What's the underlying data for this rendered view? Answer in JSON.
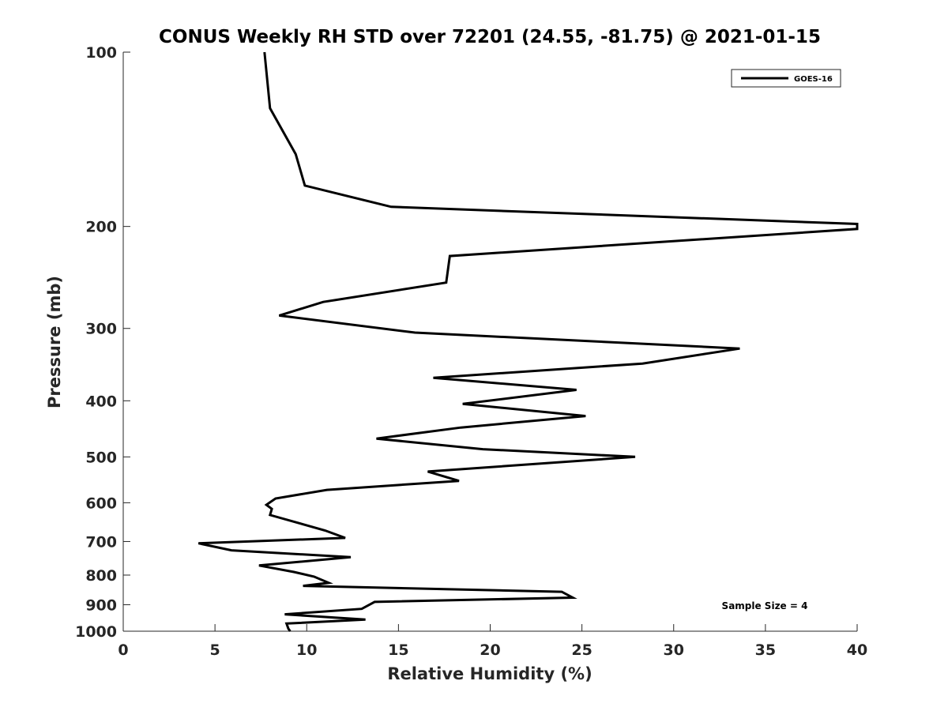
{
  "chart_data": {
    "type": "line",
    "title": "CONUS Weekly RH STD over 72201 (24.55, -81.75) @ 2021-01-15",
    "xlabel": "Relative Humidity (%)",
    "ylabel": "Pressure (mb)",
    "xlim": [
      0,
      40
    ],
    "ylim": [
      100,
      1000
    ],
    "yscale": "log",
    "yreversed": true,
    "xticks": [
      0,
      5,
      10,
      15,
      20,
      25,
      30,
      35,
      40
    ],
    "xtick_labels": [
      "0",
      "5",
      "10",
      "15",
      "20",
      "25",
      "30",
      "35",
      "40"
    ],
    "yticks": [
      100,
      200,
      300,
      400,
      500,
      600,
      700,
      800,
      900,
      1000
    ],
    "ytick_labels": [
      "100",
      "200",
      "300",
      "400",
      "500",
      "600",
      "700",
      "800",
      "900",
      "1000"
    ],
    "grid": false,
    "legend_position": "top-right",
    "annotation": "Sample Size = 4",
    "series": [
      {
        "name": "GOES-16",
        "color": "#000000",
        "points": [
          [
            7.7,
            100
          ],
          [
            8.0,
            125
          ],
          [
            9.4,
            150
          ],
          [
            9.9,
            170
          ],
          [
            14.6,
            185
          ],
          [
            40.0,
            198
          ],
          [
            40.0,
            202
          ],
          [
            17.8,
            225
          ],
          [
            17.6,
            250
          ],
          [
            10.9,
            270
          ],
          [
            8.5,
            285
          ],
          [
            15.9,
            305
          ],
          [
            33.6,
            325
          ],
          [
            28.3,
            345
          ],
          [
            16.9,
            365
          ],
          [
            24.7,
            383
          ],
          [
            18.5,
            405
          ],
          [
            25.2,
            425
          ],
          [
            18.4,
            445
          ],
          [
            13.8,
            465
          ],
          [
            19.6,
            485
          ],
          [
            27.9,
            500
          ],
          [
            16.6,
            530
          ],
          [
            18.3,
            550
          ],
          [
            11.1,
            570
          ],
          [
            8.3,
            590
          ],
          [
            7.8,
            605
          ],
          [
            8.1,
            615
          ],
          [
            8.0,
            630
          ],
          [
            11.0,
            670
          ],
          [
            12.1,
            690
          ],
          [
            4.1,
            705
          ],
          [
            5.9,
            725
          ],
          [
            12.4,
            745
          ],
          [
            7.4,
            770
          ],
          [
            9.3,
            790
          ],
          [
            10.4,
            805
          ],
          [
            11.2,
            825
          ],
          [
            9.8,
            835
          ],
          [
            23.9,
            855
          ],
          [
            24.5,
            875
          ],
          [
            13.7,
            890
          ],
          [
            13.0,
            915
          ],
          [
            8.8,
            935
          ],
          [
            13.2,
            955
          ],
          [
            8.9,
            970
          ],
          [
            9.0,
            990
          ],
          [
            9.1,
            1000
          ]
        ]
      }
    ]
  }
}
